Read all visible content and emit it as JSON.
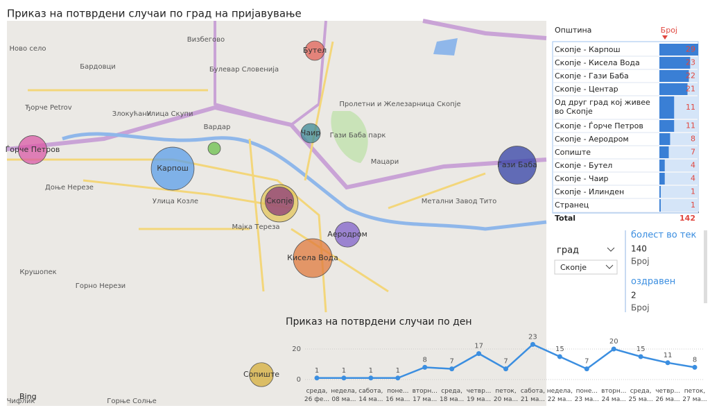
{
  "title": "Приказ на потврдени случаи по град на пријавување",
  "map": {
    "logo": "Bing",
    "labels": [
      "Ново село",
      "Визбегово",
      "Бардовци",
      "Ђорче Petrov",
      "Злокућани",
      "Улица Скупи",
      "Вардар",
      "Булевар Словенија",
      "Пролетни и Железарница Скопје",
      "Гази Баба парк",
      "Мацари",
      "Доње Нерезе",
      "Улица Козле",
      "Мајка Тереза",
      "Крушопек",
      "Горно Нерези",
      "Метални Завод Тито",
      "Горње Солње",
      "Чифлик"
    ],
    "bubbles": [
      {
        "label": "Бутел",
        "value": 4,
        "color": "#e06055"
      },
      {
        "label": "Чаир",
        "value": 4,
        "color": "#3e8a96"
      },
      {
        "label": "Гази Баба",
        "value": 22,
        "color": "#3340a6"
      },
      {
        "label": "Карпош",
        "value": 29,
        "color": "#5b9ee8"
      },
      {
        "label": null,
        "value": 21,
        "color": "#e3c45a"
      },
      {
        "label": "Скопје",
        "value": 11,
        "color": "#8b3a78"
      },
      {
        "label": "Аеродром",
        "value": 8,
        "color": "#8060c8"
      },
      {
        "label": "Кисела Вода",
        "value": 23,
        "color": "#e07a3c"
      },
      {
        "label": "Сопиште",
        "value": 7,
        "color": "#d6ae3a"
      },
      {
        "label": "Ѓорче Петров",
        "value": 11,
        "color": "#d95aa5"
      },
      {
        "label": null,
        "value": 1,
        "color": "#6bbf4a"
      }
    ]
  },
  "table": {
    "header": [
      "Општина",
      "Број"
    ],
    "rows": [
      [
        "Скопје - Карпош",
        29
      ],
      [
        "Скопје - Кисела Вода",
        23
      ],
      [
        "Скопје - Гази Баба",
        22
      ],
      [
        "Скопје - Центар",
        21
      ],
      [
        "Од друг град кој живее во Скопје",
        11
      ],
      [
        "Скопје - Ѓорче Петров",
        11
      ],
      [
        "Скопје - Аеродром",
        8
      ],
      [
        "Сопиште",
        7
      ],
      [
        "Скопје - Бутел",
        4
      ],
      [
        "Скопје - Чаир",
        4
      ],
      [
        "Скопје - Илинден",
        1
      ],
      [
        "Странец",
        1
      ]
    ],
    "total": [
      "Total",
      142
    ]
  },
  "slicer": {
    "label": "град",
    "value": "Скопје"
  },
  "cards": [
    {
      "title": "болест во тек",
      "value": 140,
      "unit": "Број"
    },
    {
      "title": "оздравен",
      "value": 2,
      "unit": "Број"
    }
  ],
  "chart_data": {
    "type": "line",
    "title": "Приказ на потврдени случаи по ден",
    "categories": [
      "среда, 26 фе...",
      "недела, 08 ма...",
      "сабота, 14 ма...",
      "поне... 16 ма...",
      "вторн... 17 ма...",
      "среда, 18 ма...",
      "четвр... 19 ма...",
      "петок, 20 ма...",
      "сабота, 21 ма...",
      "недела, 22 ма...",
      "поне... 23 ма...",
      "вторн... 24 ма...",
      "среда, 25 ма...",
      "четвр... 26 ма...",
      "петок, 27 ма..."
    ],
    "series": [
      {
        "name": "Број",
        "color": "#3b8ee0",
        "values": [
          1,
          1,
          1,
          1,
          8,
          7,
          17,
          7,
          23,
          15,
          7,
          20,
          15,
          11,
          8
        ]
      }
    ],
    "ylim": [
      0,
      25
    ],
    "yticks": [
      0,
      20
    ],
    "grid": true
  }
}
